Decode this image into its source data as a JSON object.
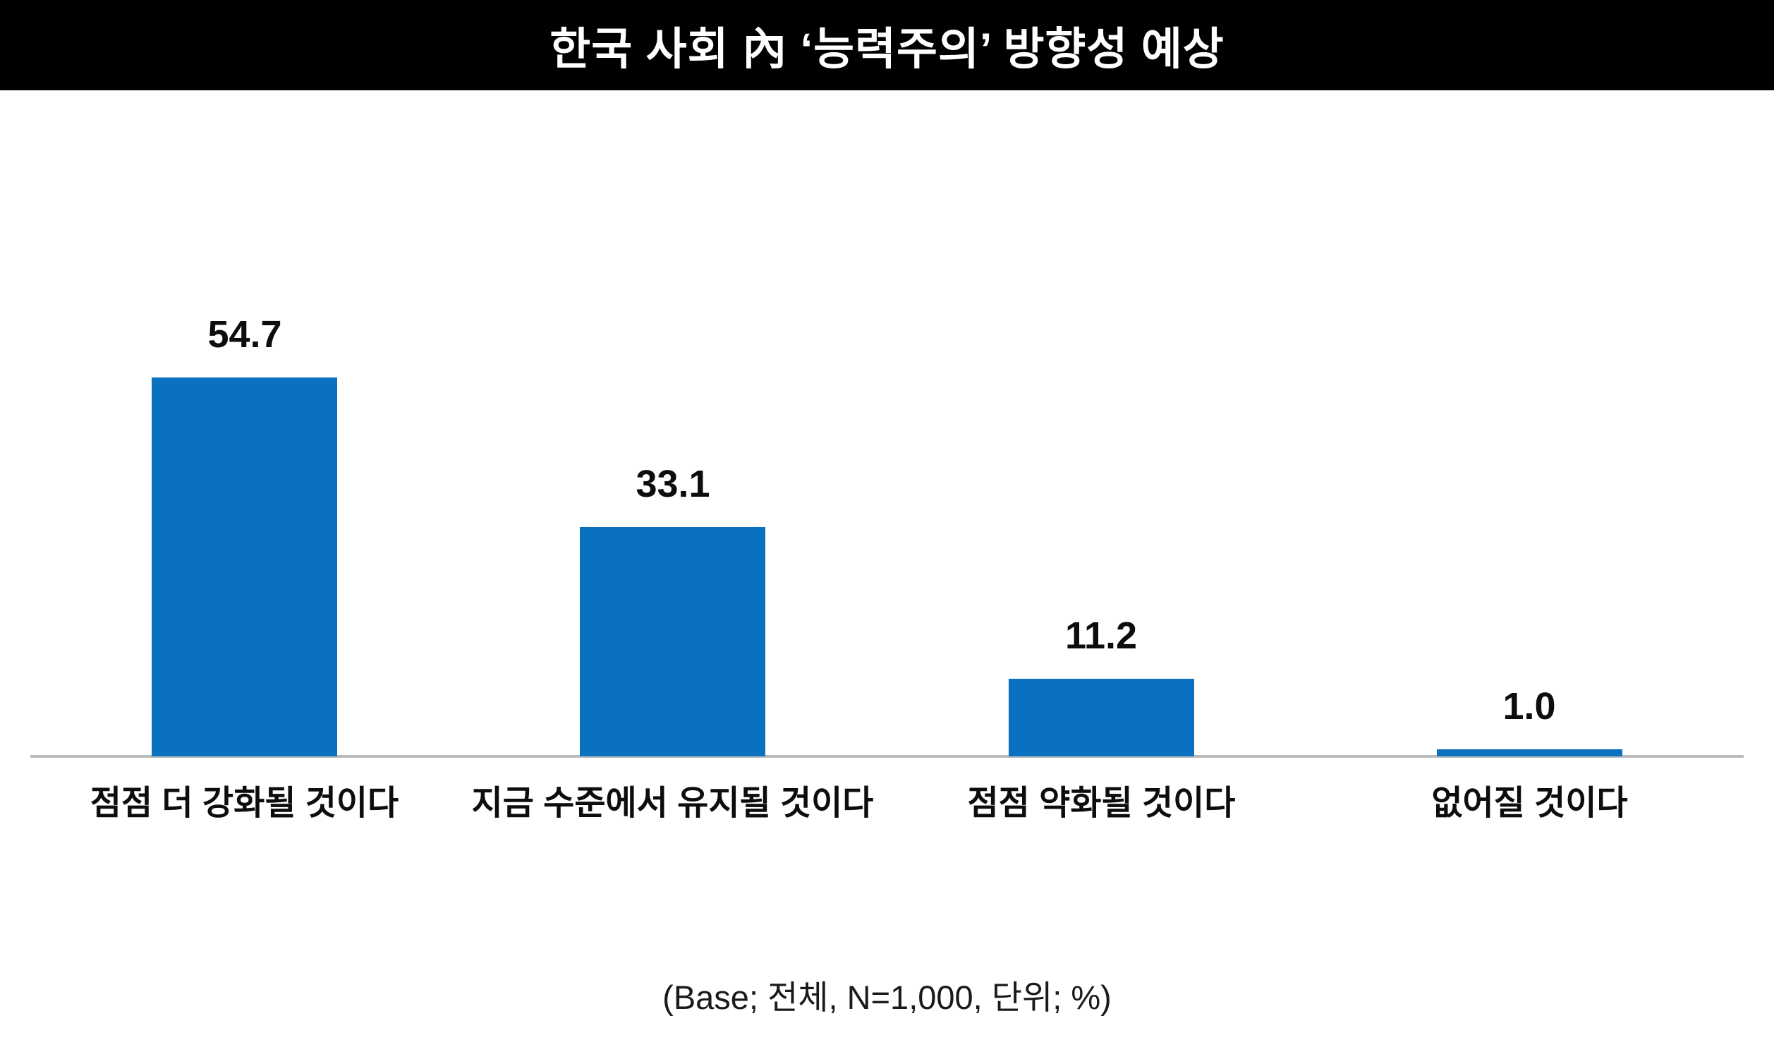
{
  "title": "한국 사회 內 ‘능력주의’ 방향성 예상",
  "caption": "(Base; 전체, N=1,000, 단위; %)",
  "colors": {
    "banner_bg": "#000000",
    "title_text": "#ffffff",
    "bar": "#0A70C0",
    "axis": "#BBBBBB",
    "label_text": "#0d0d0d"
  },
  "chart_data": {
    "type": "bar",
    "title": "한국 사회 內 ‘능력주의’ 방향성 예상",
    "categories": [
      "점점 더 강화될 것이다",
      "지금 수준에서 유지될 것이다",
      "점점 약화될 것이다",
      "없어질 것이다"
    ],
    "values": [
      54.7,
      33.1,
      11.2,
      1.0
    ],
    "value_labels": [
      "54.7",
      "33.1",
      "11.2",
      "1.0"
    ],
    "series_color": "#0A70C0",
    "ylim": [
      0,
      60
    ],
    "grid": false,
    "legend": false,
    "value_labels_position": "above-bars",
    "note": "(Base; 전체, N=1,000, 단위; %)"
  }
}
